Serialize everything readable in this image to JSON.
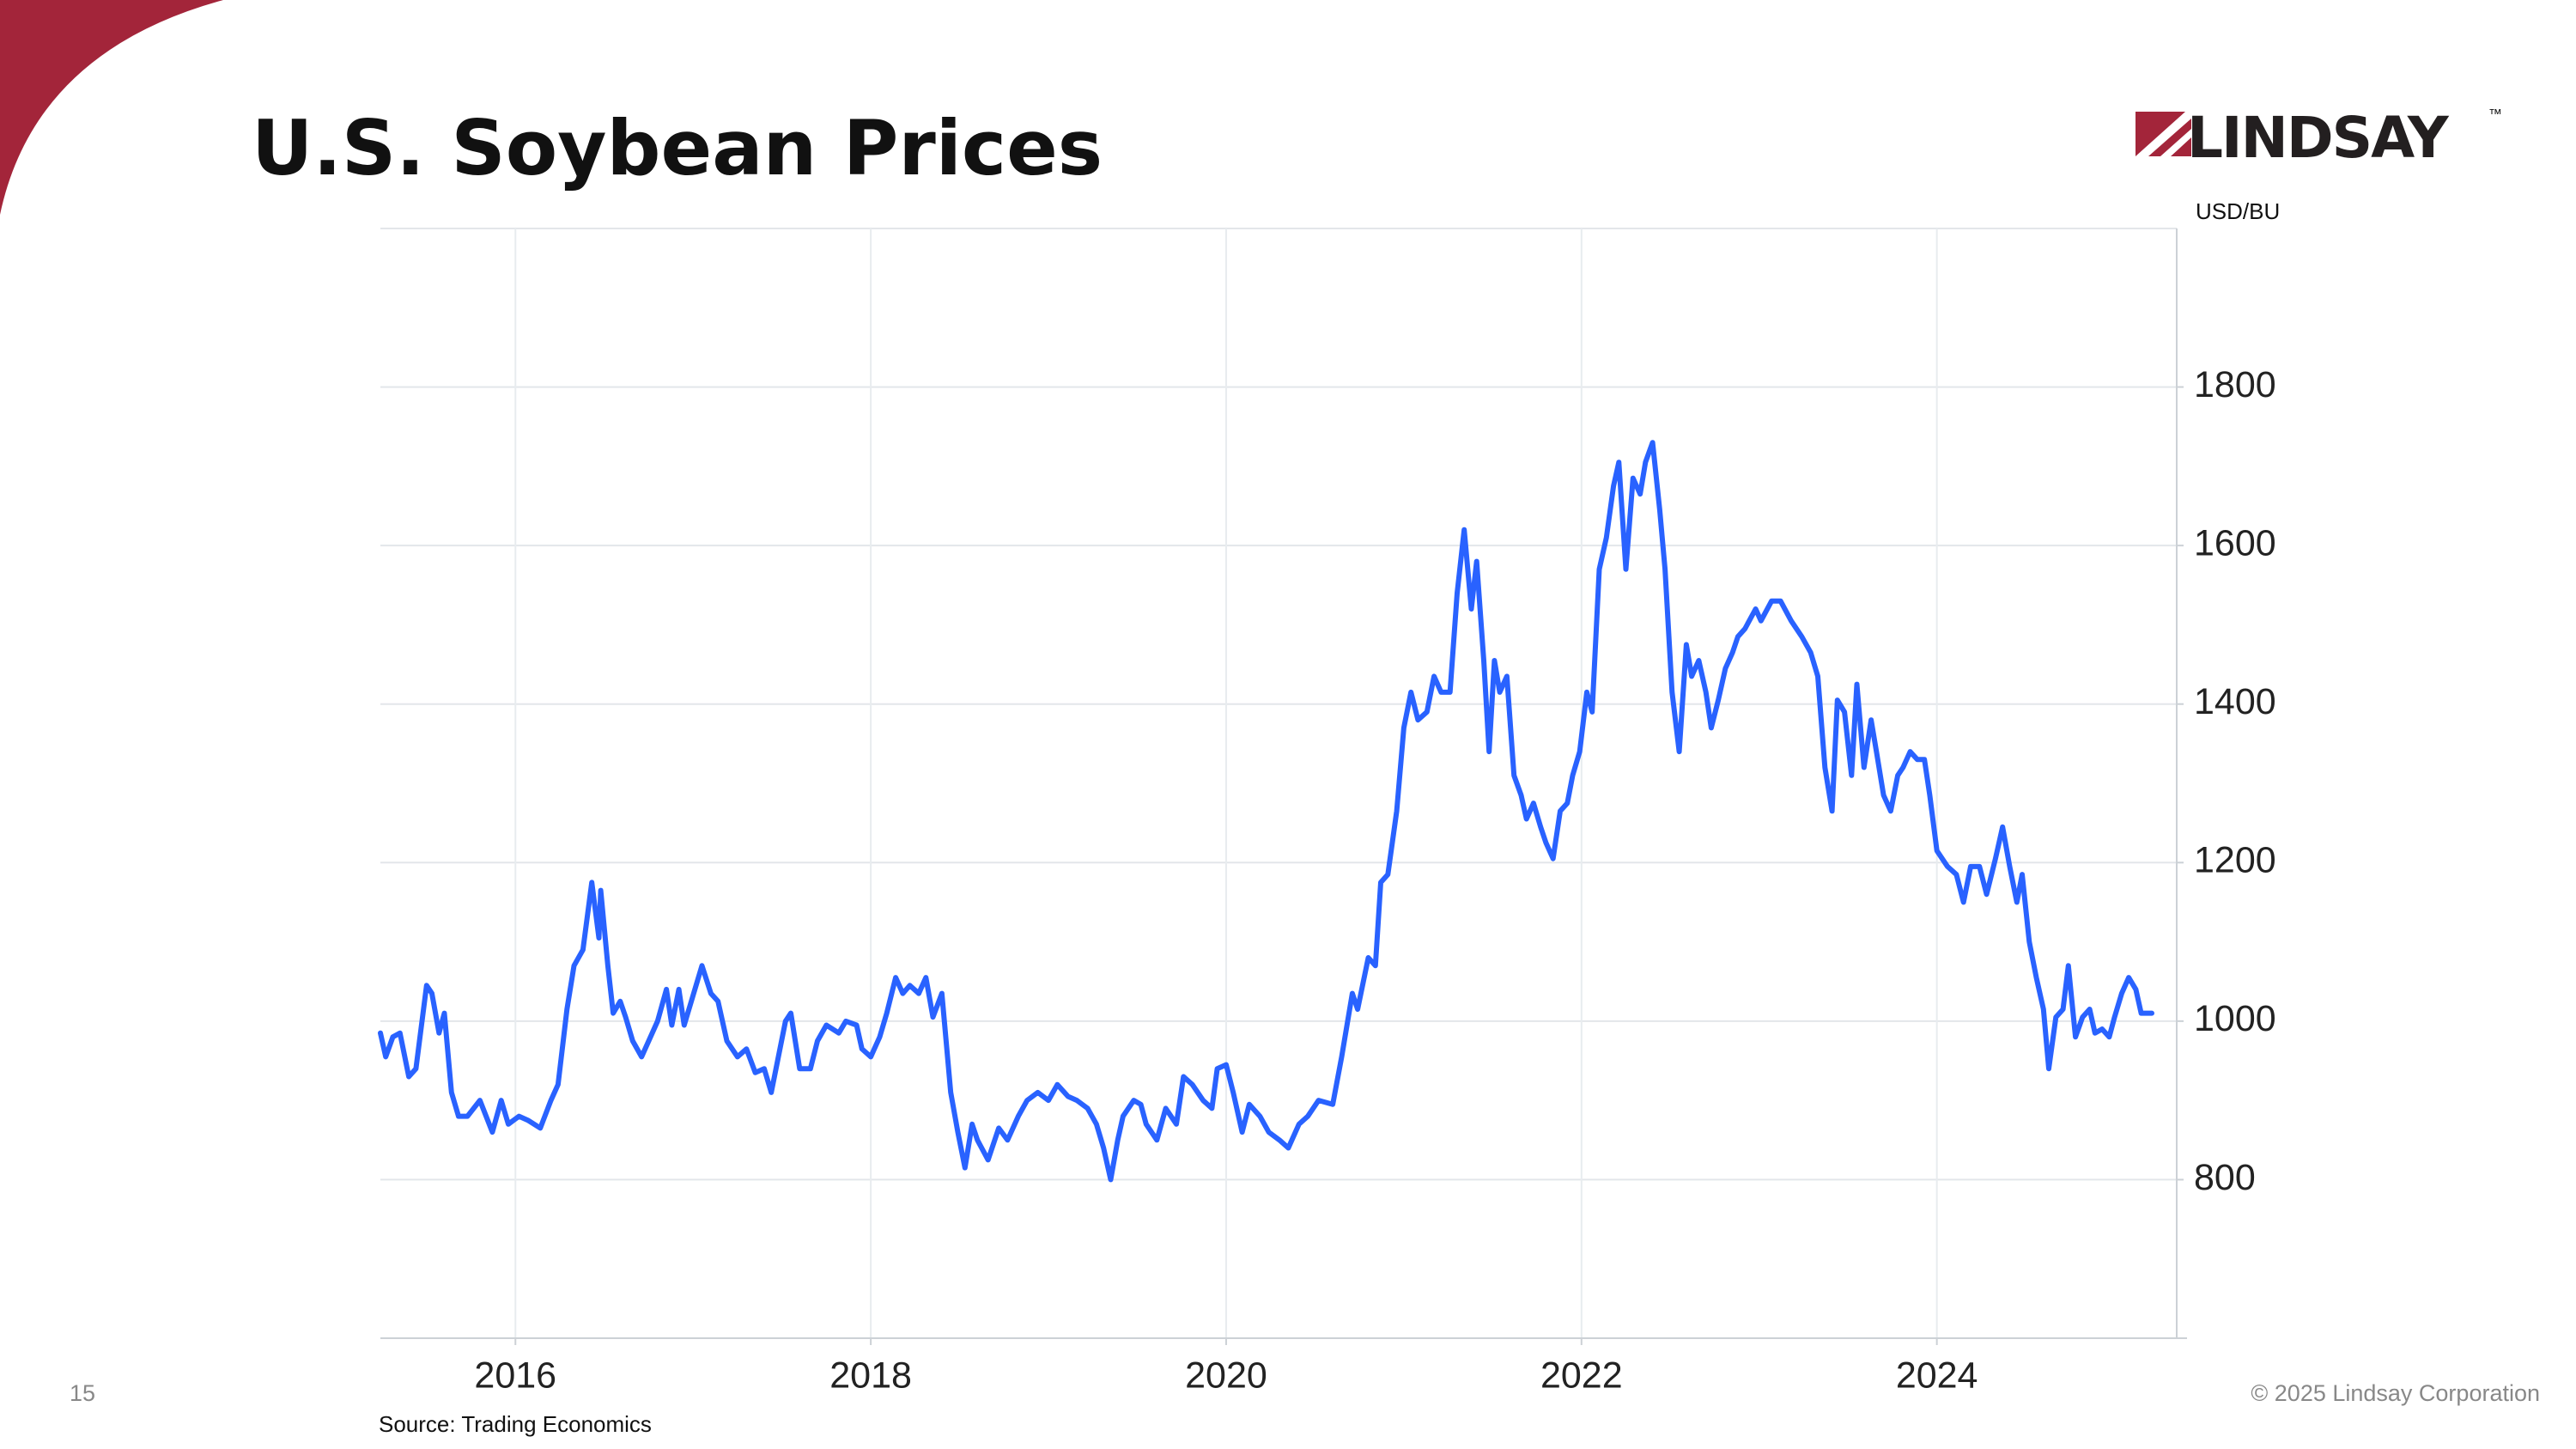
{
  "page": {
    "number": "15",
    "copyright": "© 2025 Lindsay Corporation",
    "source": "Source: Trading Economics",
    "logo": "LINDSAY",
    "logo_mark": "™"
  },
  "chart_data": {
    "type": "line",
    "title": "U.S. Soybean Prices",
    "y_label": "USD/BU",
    "color": "#2962ff",
    "grid": true,
    "xlim": [
      2015.24,
      2025.35
    ],
    "xticks": [
      2016,
      2018,
      2020,
      2022,
      2024
    ],
    "ylim": [
      600,
      2000
    ],
    "yticks": [
      800,
      1000,
      1200,
      1400,
      1600,
      1800
    ],
    "x": [
      2015.24,
      2015.27,
      2015.31,
      2015.35,
      2015.4,
      2015.44,
      2015.5,
      2015.53,
      2015.57,
      2015.6,
      2015.64,
      2015.68,
      2015.73,
      2015.8,
      2015.87,
      2015.92,
      2015.96,
      2016.02,
      2016.07,
      2016.14,
      2016.2,
      2016.24,
      2016.29,
      2016.33,
      2016.38,
      2016.43,
      2016.47,
      2016.48,
      2016.52,
      2016.55,
      2016.59,
      2016.62,
      2016.66,
      2016.71,
      2016.75,
      2016.8,
      2016.85,
      2016.88,
      2016.92,
      2016.95,
      2016.99,
      2017.05,
      2017.1,
      2017.14,
      2017.19,
      2017.25,
      2017.3,
      2017.35,
      2017.4,
      2017.44,
      2017.48,
      2017.52,
      2017.55,
      2017.6,
      2017.66,
      2017.7,
      2017.75,
      2017.82,
      2017.86,
      2017.92,
      2017.95,
      2018.0,
      2018.05,
      2018.09,
      2018.14,
      2018.18,
      2018.22,
      2018.27,
      2018.31,
      2018.35,
      2018.4,
      2018.45,
      2018.49,
      2018.53,
      2018.57,
      2018.6,
      2018.66,
      2018.72,
      2018.77,
      2018.83,
      2018.88,
      2018.94,
      2019.0,
      2019.05,
      2019.11,
      2019.16,
      2019.22,
      2019.27,
      2019.31,
      2019.35,
      2019.39,
      2019.42,
      2019.48,
      2019.52,
      2019.55,
      2019.61,
      2019.66,
      2019.72,
      2019.76,
      2019.81,
      2019.87,
      2019.92,
      2019.95,
      2020.0,
      2020.04,
      2020.09,
      2020.13,
      2020.19,
      2020.24,
      2020.3,
      2020.35,
      2020.41,
      2020.46,
      2020.52,
      2020.6,
      2020.65,
      2020.71,
      2020.74,
      2020.8,
      2020.84,
      2020.87,
      2020.91,
      2020.96,
      2021.0,
      2021.04,
      2021.08,
      2021.13,
      2021.17,
      2021.21,
      2021.26,
      2021.3,
      2021.34,
      2021.38,
      2021.41,
      2021.45,
      2021.48,
      2021.51,
      2021.54,
      2021.58,
      2021.62,
      2021.66,
      2021.69,
      2021.73,
      2021.77,
      2021.8,
      2021.84,
      2021.88,
      2021.92,
      2021.95,
      2021.99,
      2022.03,
      2022.06,
      2022.1,
      2022.14,
      2022.18,
      2022.21,
      2022.25,
      2022.29,
      2022.33,
      2022.36,
      2022.4,
      2022.44,
      2022.47,
      2022.51,
      2022.55,
      2022.59,
      2022.62,
      2022.66,
      2022.7,
      2022.73,
      2022.77,
      2022.81,
      2022.85,
      2022.88,
      2022.92,
      2022.98,
      2023.01,
      2023.07,
      2023.12,
      2023.18,
      2023.24,
      2023.29,
      2023.33,
      2023.37,
      2023.41,
      2023.44,
      2023.48,
      2023.52,
      2023.55,
      2023.59,
      2023.63,
      2023.66,
      2023.7,
      2023.74,
      2023.78,
      2023.81,
      2023.85,
      2023.89,
      2023.93,
      2023.96,
      2024.0,
      2024.06,
      2024.11,
      2024.15,
      2024.19,
      2024.24,
      2024.28,
      2024.33,
      2024.37,
      2024.41,
      2024.45,
      2024.48,
      2024.52,
      2024.56,
      2024.6,
      2024.63,
      2024.67,
      2024.71,
      2024.74,
      2024.78,
      2024.82,
      2024.86,
      2024.89,
      2024.93,
      2024.97,
      2025.0,
      2025.04,
      2025.08,
      2025.12,
      2025.15,
      2025.21
    ],
    "values": [
      985,
      955,
      980,
      985,
      930,
      940,
      1045,
      1035,
      985,
      1010,
      910,
      880,
      880,
      900,
      860,
      900,
      870,
      880,
      875,
      865,
      900,
      920,
      1015,
      1070,
      1090,
      1175,
      1105,
      1165,
      1070,
      1010,
      1025,
      1005,
      975,
      955,
      975,
      1000,
      1040,
      995,
      1040,
      995,
      1025,
      1070,
      1035,
      1025,
      975,
      955,
      965,
      935,
      940,
      910,
      955,
      1000,
      1010,
      940,
      940,
      975,
      995,
      985,
      1000,
      995,
      965,
      955,
      980,
      1010,
      1055,
      1035,
      1045,
      1035,
      1055,
      1005,
      1035,
      910,
      860,
      815,
      870,
      850,
      825,
      865,
      850,
      880,
      900,
      910,
      900,
      920,
      905,
      900,
      890,
      870,
      840,
      800,
      850,
      880,
      900,
      895,
      870,
      850,
      890,
      870,
      930,
      920,
      900,
      890,
      940,
      945,
      910,
      860,
      895,
      880,
      860,
      850,
      840,
      870,
      880,
      900,
      895,
      955,
      1035,
      1015,
      1080,
      1070,
      1175,
      1185,
      1265,
      1370,
      1415,
      1380,
      1390,
      1435,
      1415,
      1415,
      1540,
      1620,
      1520,
      1580,
      1455,
      1340,
      1455,
      1415,
      1435,
      1310,
      1285,
      1255,
      1275,
      1245,
      1225,
      1205,
      1265,
      1275,
      1310,
      1340,
      1415,
      1390,
      1570,
      1610,
      1675,
      1705,
      1570,
      1685,
      1665,
      1705,
      1730,
      1645,
      1570,
      1415,
      1340,
      1475,
      1435,
      1455,
      1415,
      1370,
      1405,
      1445,
      1465,
      1485,
      1495,
      1520,
      1505,
      1530,
      1530,
      1505,
      1485,
      1465,
      1435,
      1320,
      1265,
      1405,
      1390,
      1310,
      1425,
      1320,
      1380,
      1340,
      1285,
      1265,
      1310,
      1320,
      1340,
      1330,
      1330,
      1285,
      1215,
      1195,
      1185,
      1150,
      1195,
      1195,
      1160,
      1205,
      1245,
      1195,
      1150,
      1185,
      1100,
      1055,
      1015,
      940,
      1005,
      1015,
      1070,
      980,
      1005,
      1015,
      985,
      990,
      980,
      1005,
      1035,
      1055,
      1040,
      1010,
      1010
    ]
  }
}
